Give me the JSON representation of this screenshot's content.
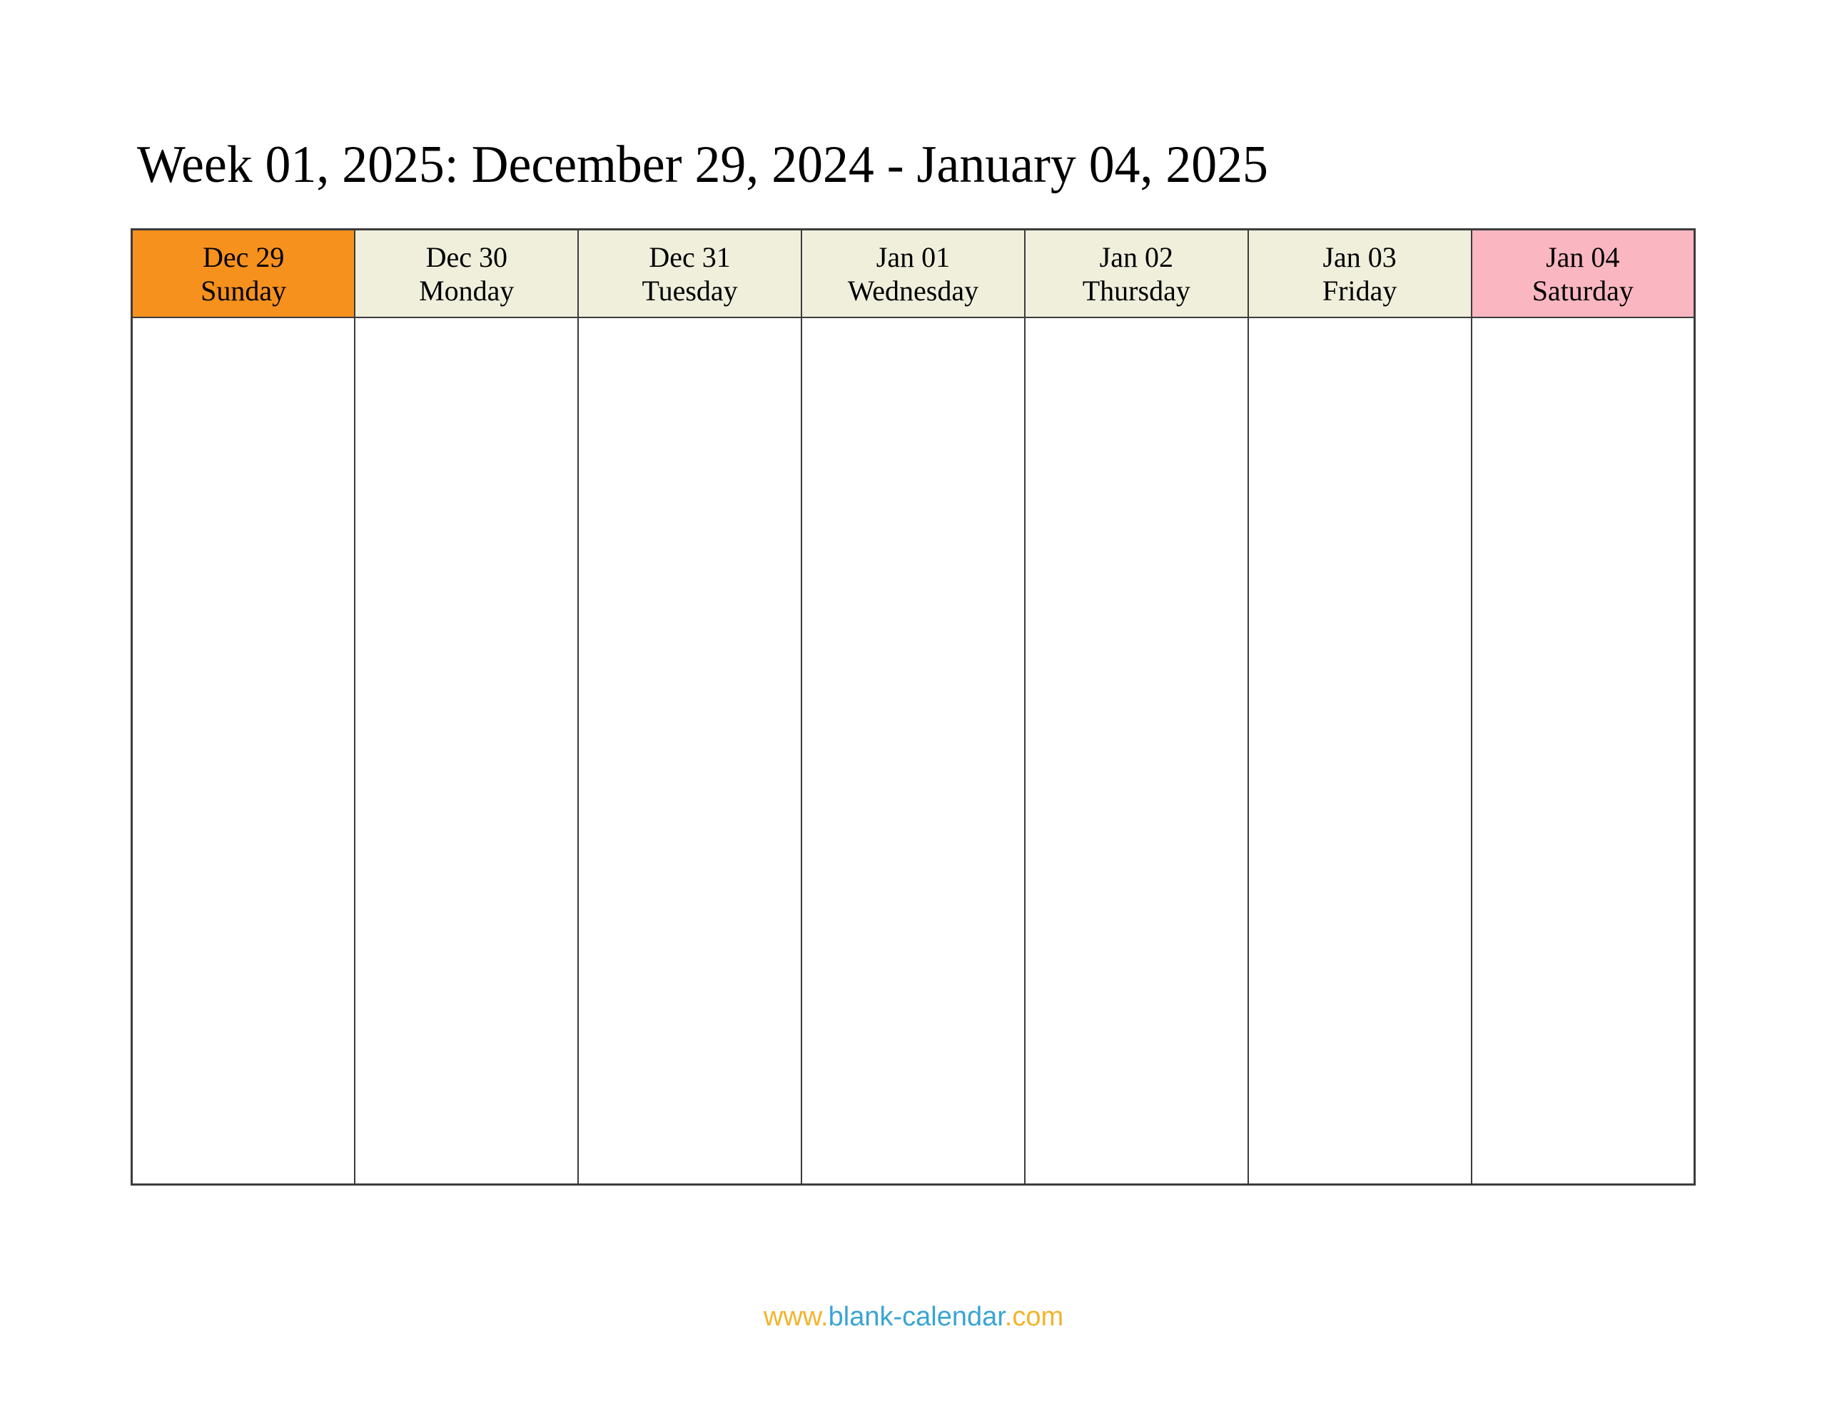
{
  "page": {
    "title": "Week 01, 2025: December 29, 2024 - January 04, 2025"
  },
  "calendar": {
    "days": [
      {
        "date": "Dec 29",
        "day": "Sunday",
        "bg": "#F6911E"
      },
      {
        "date": "Dec 30",
        "day": "Monday",
        "bg": "#EFEFDC"
      },
      {
        "date": "Dec 31",
        "day": "Tuesday",
        "bg": "#EFEFDC"
      },
      {
        "date": "Jan 01",
        "day": "Wednesday",
        "bg": "#EFEFDC"
      },
      {
        "date": "Jan 02",
        "day": "Thursday",
        "bg": "#EFEFDC"
      },
      {
        "date": "Jan 03",
        "day": "Friday",
        "bg": "#EFEFDC"
      },
      {
        "date": "Jan 04",
        "day": "Saturday",
        "bg": "#FAB7C1"
      }
    ]
  },
  "footer": {
    "url": "www.blank-calendar.com",
    "parts": [
      {
        "text": "www.",
        "color": "#F2B32B"
      },
      {
        "text": "blank-calendar",
        "color": "#3AA4D3"
      },
      {
        "text": ".com",
        "color": "#F2B32B"
      }
    ]
  },
  "colors": {
    "sunday_header_bg": "#F6911E",
    "weekday_header_bg": "#EFEFDC",
    "saturday_header_bg": "#FAB7C1",
    "table_border": "#3c3c3c",
    "header_text": "#000000",
    "title_text": "#000000"
  }
}
